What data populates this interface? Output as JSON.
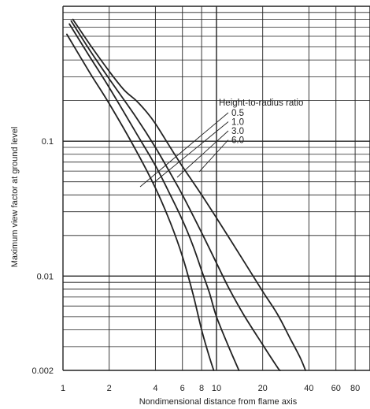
{
  "chart_data": {
    "type": "line",
    "title": "",
    "xlabel": "Nondimensional distance from flame axis",
    "ylabel": "Maximum view factor at ground level",
    "xscale": "log",
    "yscale": "log",
    "xlim": [
      1,
      100
    ],
    "ylim": [
      0.002,
      1
    ],
    "grid": true,
    "x_tick_labels": [
      {
        "value": 1,
        "label": "1"
      },
      {
        "value": 2,
        "label": "2"
      },
      {
        "value": 4,
        "label": "4"
      },
      {
        "value": 6,
        "label": "6"
      },
      {
        "value": 8,
        "label": "8"
      },
      {
        "value": 10,
        "label": "10"
      },
      {
        "value": 20,
        "label": "20"
      },
      {
        "value": 40,
        "label": "40"
      },
      {
        "value": 60,
        "label": "60"
      },
      {
        "value": 80,
        "label": "80"
      }
    ],
    "y_tick_labels": [
      {
        "value": 0.1,
        "label": "0.1"
      },
      {
        "value": 0.01,
        "label": "0.01"
      },
      {
        "value": 0.002,
        "label": "0.002"
      }
    ],
    "legend": {
      "title": "Height-to-radius ratio",
      "entries": [
        "0.5",
        "1.0",
        "3.0",
        "6.0"
      ],
      "placement": "upper-right, labels linked to curves by leader lines"
    },
    "series": [
      {
        "name": "0.5",
        "points": [
          [
            1.06,
            0.62
          ],
          [
            1.5,
            0.32
          ],
          [
            2,
            0.19
          ],
          [
            3,
            0.085
          ],
          [
            4,
            0.045
          ],
          [
            5,
            0.025
          ],
          [
            6,
            0.014
          ],
          [
            7,
            0.0075
          ],
          [
            8,
            0.004
          ],
          [
            9,
            0.0025
          ],
          [
            9.6,
            0.002
          ]
        ]
      },
      {
        "name": "1.0",
        "points": [
          [
            1.1,
            0.74
          ],
          [
            1.5,
            0.42
          ],
          [
            2,
            0.25
          ],
          [
            3,
            0.115
          ],
          [
            4,
            0.066
          ],
          [
            5,
            0.04
          ],
          [
            6,
            0.026
          ],
          [
            7,
            0.017
          ],
          [
            8,
            0.011
          ],
          [
            9,
            0.0075
          ],
          [
            10,
            0.005
          ],
          [
            12,
            0.003
          ],
          [
            14,
            0.002
          ]
        ]
      },
      {
        "name": "3.0",
        "points": [
          [
            1.13,
            0.78
          ],
          [
            1.5,
            0.47
          ],
          [
            2,
            0.29
          ],
          [
            3,
            0.15
          ],
          [
            4,
            0.09
          ],
          [
            5,
            0.058
          ],
          [
            6,
            0.04
          ],
          [
            8,
            0.021
          ],
          [
            10,
            0.0125
          ],
          [
            12,
            0.0082
          ],
          [
            15,
            0.0052
          ],
          [
            20,
            0.0031
          ],
          [
            25,
            0.0021
          ],
          [
            26,
            0.002
          ]
        ]
      },
      {
        "name": "6.0",
        "points": [
          [
            1.16,
            0.8
          ],
          [
            1.5,
            0.52
          ],
          [
            2,
            0.33
          ],
          [
            2.5,
            0.24
          ],
          [
            3,
            0.2
          ],
          [
            3.5,
            0.165
          ],
          [
            4,
            0.135
          ],
          [
            5,
            0.09
          ],
          [
            6,
            0.065
          ],
          [
            8,
            0.04
          ],
          [
            10,
            0.027
          ],
          [
            15,
            0.013
          ],
          [
            20,
            0.0077
          ],
          [
            25,
            0.0052
          ],
          [
            30,
            0.0035
          ],
          [
            35,
            0.0025
          ],
          [
            38,
            0.002
          ]
        ]
      }
    ]
  }
}
